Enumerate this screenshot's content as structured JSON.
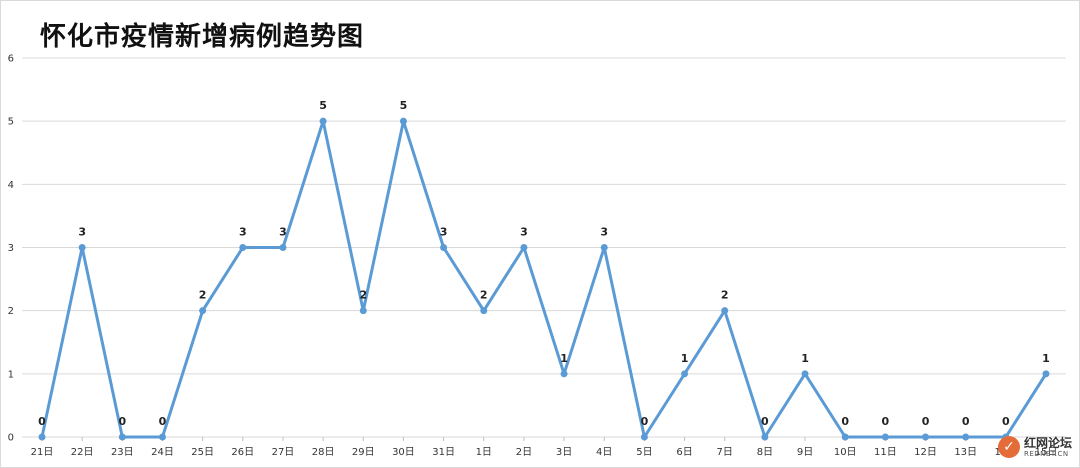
{
  "chart_data": {
    "type": "line",
    "title": "怀化市疫情新增病例趋势图",
    "categories": [
      "21日",
      "22日",
      "23日",
      "24日",
      "25日",
      "26日",
      "27日",
      "28日",
      "29日",
      "30日",
      "31日",
      "1日",
      "2日",
      "3日",
      "4日",
      "5日",
      "6日",
      "7日",
      "8日",
      "9日",
      "10日",
      "11日",
      "12日",
      "13日",
      "14日",
      "15日"
    ],
    "series": [
      {
        "values": [
          0,
          3,
          0,
          0,
          2,
          3,
          3,
          5,
          2,
          5,
          3,
          2,
          3,
          1,
          3,
          0,
          1,
          2,
          0,
          1,
          0,
          0,
          0,
          0,
          0,
          1
        ]
      }
    ],
    "ylim": [
      0,
      6
    ],
    "yticks": [
      "0",
      "1",
      "2",
      "3",
      "4",
      "5",
      "6"
    ],
    "grid": true,
    "colors": {
      "line": "#5b9bd5",
      "grid": "#d9d9d9"
    }
  },
  "watermark": {
    "name": "红网论坛",
    "url": "REDNET.CN"
  }
}
